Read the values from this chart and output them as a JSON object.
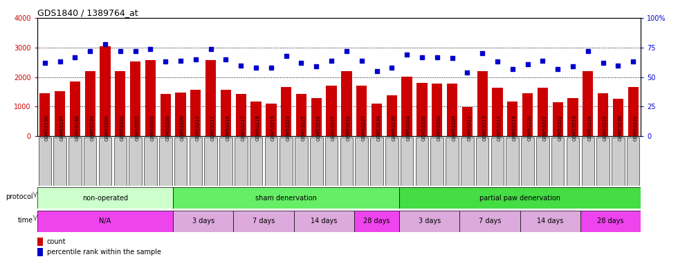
{
  "title": "GDS1840 / 1389764_at",
  "samples": [
    "GSM53196",
    "GSM53197",
    "GSM53198",
    "GSM53199",
    "GSM53200",
    "GSM53201",
    "GSM53202",
    "GSM53203",
    "GSM53208",
    "GSM53209",
    "GSM53210",
    "GSM53211",
    "GSM53216",
    "GSM53217",
    "GSM53218",
    "GSM53219",
    "GSM53224",
    "GSM53225",
    "GSM53226",
    "GSM53227",
    "GSM53232",
    "GSM53233",
    "GSM53234",
    "GSM53235",
    "GSM53204",
    "GSM53205",
    "GSM53206",
    "GSM53207",
    "GSM53212",
    "GSM53213",
    "GSM53214",
    "GSM53215",
    "GSM53220",
    "GSM53221",
    "GSM53222",
    "GSM53223",
    "GSM53228",
    "GSM53229",
    "GSM53230",
    "GSM53231"
  ],
  "counts": [
    1450,
    1520,
    1860,
    2200,
    3050,
    2200,
    2520,
    2580,
    1430,
    1480,
    1560,
    2570,
    1560,
    1420,
    1160,
    1110,
    1670,
    1430,
    1280,
    1710,
    2200,
    1700,
    1110,
    1390,
    2010,
    1800,
    1790,
    1770,
    980,
    2200,
    1640,
    1160,
    1440,
    1630,
    1150,
    1280,
    2200,
    1450,
    1260,
    1660
  ],
  "percentiles": [
    62,
    63,
    67,
    72,
    78,
    72,
    72,
    74,
    63,
    64,
    65,
    74,
    65,
    60,
    58,
    58,
    68,
    62,
    59,
    64,
    72,
    64,
    55,
    58,
    69,
    67,
    67,
    66,
    54,
    70,
    63,
    57,
    61,
    64,
    57,
    59,
    72,
    62,
    60,
    63
  ],
  "bar_color": "#cc0000",
  "dot_color": "#0000cc",
  "ylim_left": [
    0,
    4000
  ],
  "ylim_right": [
    0,
    100
  ],
  "yticks_left": [
    0,
    1000,
    2000,
    3000,
    4000
  ],
  "yticks_right": [
    0,
    25,
    50,
    75,
    100
  ],
  "protocol_groups": [
    {
      "label": "non-operated",
      "start": 0,
      "end": 9,
      "color": "#ccffcc"
    },
    {
      "label": "sham denervation",
      "start": 9,
      "end": 24,
      "color": "#66ee66"
    },
    {
      "label": "partial paw denervation",
      "start": 24,
      "end": 40,
      "color": "#44dd44"
    }
  ],
  "time_groups": [
    {
      "label": "N/A",
      "start": 0,
      "end": 9,
      "color": "#ee44ee"
    },
    {
      "label": "3 days",
      "start": 9,
      "end": 13,
      "color": "#ddaadd"
    },
    {
      "label": "7 days",
      "start": 13,
      "end": 17,
      "color": "#ddaadd"
    },
    {
      "label": "14 days",
      "start": 17,
      "end": 21,
      "color": "#ddaadd"
    },
    {
      "label": "28 days",
      "start": 21,
      "end": 24,
      "color": "#ee44ee"
    },
    {
      "label": "3 days",
      "start": 24,
      "end": 28,
      "color": "#ddaadd"
    },
    {
      "label": "7 days",
      "start": 28,
      "end": 32,
      "color": "#ddaadd"
    },
    {
      "label": "14 days",
      "start": 32,
      "end": 36,
      "color": "#ddaadd"
    },
    {
      "label": "28 days",
      "start": 36,
      "end": 40,
      "color": "#ee44ee"
    }
  ],
  "background_color": "#ffffff",
  "protocol_label": "protocol",
  "time_label": "time",
  "xtick_bg": "#cccccc"
}
